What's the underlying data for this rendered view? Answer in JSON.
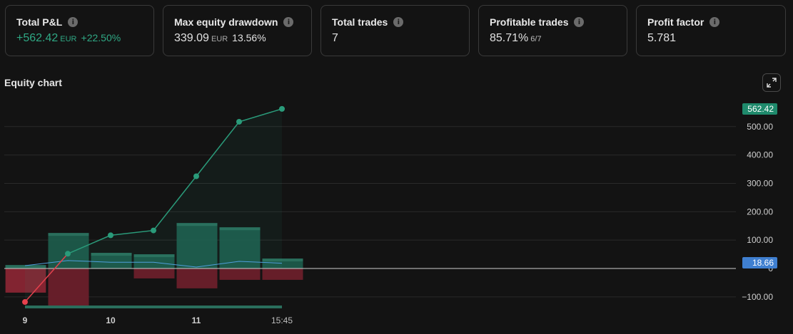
{
  "cards": [
    {
      "title": "Total P&L",
      "value": "+562.42",
      "unit": "EUR",
      "sub": "+22.50%",
      "positive": true
    },
    {
      "title": "Max equity drawdown",
      "value": "339.09",
      "unit": "EUR",
      "sub": "13.56%"
    },
    {
      "title": "Total trades",
      "value": "7"
    },
    {
      "title": "Profitable trades",
      "value": "85.71%",
      "small": "6/7"
    },
    {
      "title": "Profit factor",
      "value": "5.781"
    }
  ],
  "info_glyph": "i",
  "chart": {
    "title": "Equity chart"
  },
  "chart_data": {
    "type": "line",
    "x": [
      "9",
      "",
      "10",
      "",
      "11",
      "",
      ""
    ],
    "x_ticks": [
      "9",
      "10",
      "11",
      "15:45"
    ],
    "equity": [
      -118,
      52,
      117,
      134,
      325,
      517,
      562.42
    ],
    "bars_positive": [
      12,
      125,
      55,
      50,
      160,
      145,
      35
    ],
    "bars_negative": [
      -85,
      -140,
      0,
      -35,
      -70,
      -40,
      -40
    ],
    "buy_hold": [
      10,
      28,
      22,
      22,
      5,
      25,
      18.66
    ],
    "y_ticks": [
      "500.00",
      "400.00",
      "300.00",
      "200.00",
      "100.00",
      "0",
      "−100.00"
    ],
    "ylim": [
      -140,
      590
    ],
    "last_equity_label": "562.42",
    "last_buy_hold_label": "18.66",
    "colors": {
      "equity": "#2a9b7a",
      "buy_hold": "#4f9fdc",
      "positive": "#1e5e4e",
      "negative": "#6a1f2a",
      "start_point": "#e5414d",
      "badge_equity": "#1f8a6c",
      "badge_buy_hold": "#3f7fd0"
    }
  }
}
